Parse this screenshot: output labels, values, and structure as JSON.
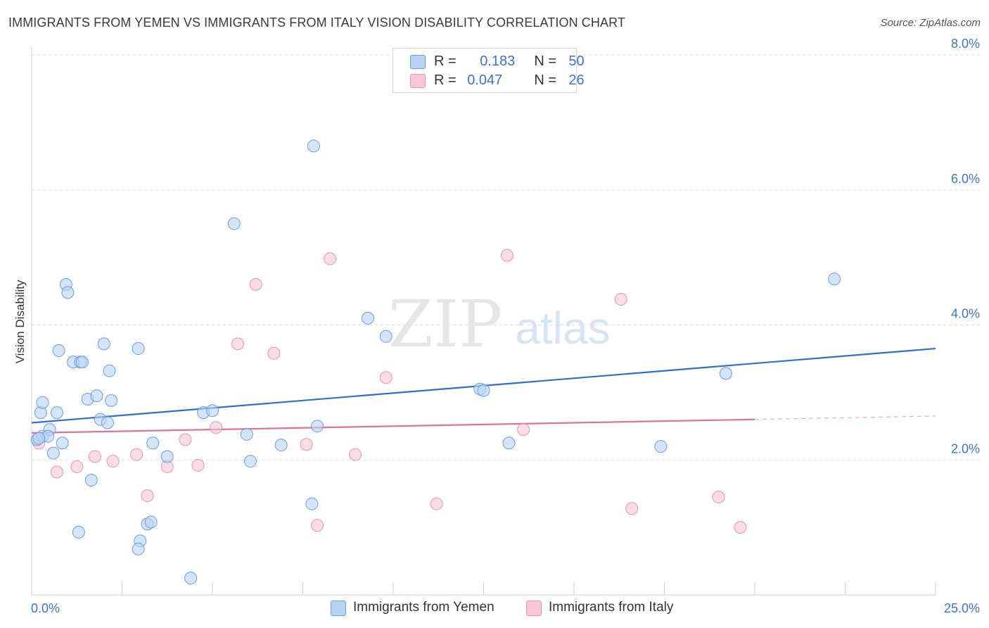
{
  "title": "IMMIGRANTS FROM YEMEN VS IMMIGRANTS FROM ITALY VISION DISABILITY CORRELATION CHART",
  "source": "Source: ZipAtlas.com",
  "watermark": {
    "zip": "ZIP",
    "atlas": "atlas"
  },
  "legend": {
    "rows": [
      {
        "r_label": "R =",
        "r_value": "0.183",
        "n_label": "N =",
        "n_value": "50"
      },
      {
        "r_label": "R =",
        "r_value": "0.047",
        "n_label": "N =",
        "n_value": "26"
      }
    ]
  },
  "colors": {
    "yemen_fill": "#b9d3f5",
    "yemen_stroke": "#6a9be0",
    "yemen_line": "#2f6fd0",
    "italy_fill": "#f9c7d6",
    "italy_stroke": "#e892ac",
    "italy_line": "#e0729a",
    "tick_label": "#3b74c9",
    "grid": "#dedede"
  },
  "chart_data": {
    "type": "scatter",
    "title": "IMMIGRANTS FROM YEMEN VS IMMIGRANTS FROM ITALY VISION DISABILITY CORRELATION CHART",
    "xlabel": "",
    "ylabel": "Vision Disability",
    "xlim": [
      0,
      25
    ],
    "ylim": [
      0,
      8
    ],
    "x_tick_labels": [
      "0.0%",
      "25.0%"
    ],
    "y_ticks": [
      2,
      4,
      6,
      8
    ],
    "y_tick_labels": [
      "2.0%",
      "4.0%",
      "6.0%",
      "8.0%"
    ],
    "series": [
      {
        "name": "Immigrants from Yemen",
        "r": 0.183,
        "n": 50,
        "trend": {
          "x": [
            0,
            25
          ],
          "y": [
            2.55,
            3.65
          ]
        },
        "points": [
          [
            0.15,
            2.3
          ],
          [
            0.3,
            2.35
          ],
          [
            0.25,
            2.7
          ],
          [
            0.3,
            2.85
          ],
          [
            0.5,
            2.45
          ],
          [
            0.45,
            2.35
          ],
          [
            0.6,
            2.1
          ],
          [
            0.7,
            2.7
          ],
          [
            0.85,
            2.25
          ],
          [
            0.75,
            3.62
          ],
          [
            0.95,
            4.6
          ],
          [
            1.0,
            4.48
          ],
          [
            1.15,
            3.45
          ],
          [
            1.35,
            3.45
          ],
          [
            1.4,
            3.45
          ],
          [
            1.55,
            2.9
          ],
          [
            1.65,
            1.7
          ],
          [
            1.8,
            2.95
          ],
          [
            1.9,
            2.6
          ],
          [
            2.0,
            3.72
          ],
          [
            2.1,
            2.55
          ],
          [
            2.15,
            3.32
          ],
          [
            2.2,
            2.88
          ],
          [
            1.3,
            0.93
          ],
          [
            2.95,
            3.65
          ],
          [
            3.0,
            0.8
          ],
          [
            3.2,
            1.05
          ],
          [
            3.3,
            1.08
          ],
          [
            3.35,
            2.25
          ],
          [
            2.95,
            0.68
          ],
          [
            3.75,
            2.05
          ],
          [
            4.4,
            0.25
          ],
          [
            4.75,
            2.7
          ],
          [
            5.0,
            2.73
          ],
          [
            5.6,
            5.5
          ],
          [
            5.95,
            2.38
          ],
          [
            6.05,
            1.98
          ],
          [
            6.9,
            2.22
          ],
          [
            7.75,
            1.35
          ],
          [
            7.8,
            6.65
          ],
          [
            7.9,
            2.5
          ],
          [
            9.3,
            4.1
          ],
          [
            9.8,
            3.83
          ],
          [
            12.4,
            3.05
          ],
          [
            12.5,
            3.03
          ],
          [
            13.2,
            2.25
          ],
          [
            17.4,
            2.2
          ],
          [
            19.2,
            3.28
          ],
          [
            22.2,
            4.68
          ],
          [
            0.2,
            2.32
          ]
        ]
      },
      {
        "name": "Immigrants from Italy",
        "r": 0.047,
        "n": 26,
        "trend": {
          "x": [
            0,
            20
          ],
          "y": [
            2.4,
            2.6
          ]
        },
        "trend_dashed": {
          "x": [
            20,
            25
          ],
          "y": [
            2.6,
            2.65
          ]
        },
        "points": [
          [
            0.2,
            2.25
          ],
          [
            0.7,
            1.82
          ],
          [
            1.25,
            1.9
          ],
          [
            1.75,
            2.05
          ],
          [
            2.25,
            1.98
          ],
          [
            2.9,
            2.08
          ],
          [
            3.2,
            1.47
          ],
          [
            3.75,
            1.9
          ],
          [
            4.25,
            2.3
          ],
          [
            4.6,
            1.92
          ],
          [
            5.1,
            2.48
          ],
          [
            5.7,
            3.72
          ],
          [
            6.2,
            4.6
          ],
          [
            6.7,
            3.58
          ],
          [
            7.6,
            2.23
          ],
          [
            7.9,
            1.03
          ],
          [
            8.25,
            4.98
          ],
          [
            8.95,
            2.08
          ],
          [
            9.8,
            3.22
          ],
          [
            11.2,
            1.35
          ],
          [
            13.15,
            5.03
          ],
          [
            13.6,
            2.45
          ],
          [
            16.3,
            4.38
          ],
          [
            16.6,
            1.28
          ],
          [
            19.0,
            1.45
          ],
          [
            19.6,
            1.0
          ]
        ]
      }
    ]
  }
}
